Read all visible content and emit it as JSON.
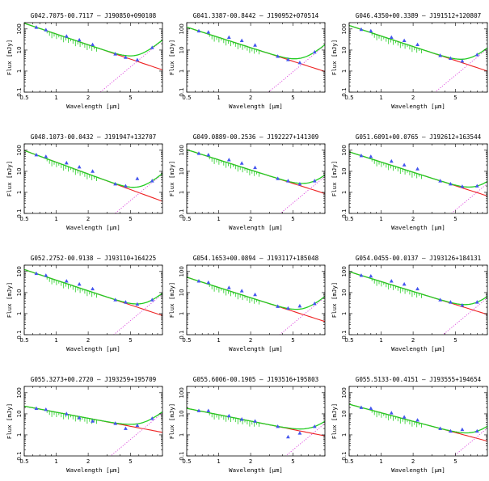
{
  "figure": {
    "xlabel": "Wavelength [μm]",
    "ylabel": "Flux [mJy]",
    "x_tick_labels": [
      "0.5",
      "1",
      "2",
      "5"
    ],
    "colors": {
      "model_total": "#22cc22",
      "photosphere": "#ee2222",
      "dust_excess": "#dd44dd",
      "observed": "#4455ee",
      "frame": "#000000"
    }
  },
  "chart_data": [
    {
      "type": "scatter",
      "title": "G042.7075-00.7117 — J190850+090108",
      "xscale": "log",
      "yscale": "log",
      "xlim": [
        0.5,
        10
      ],
      "ylim": [
        0.1,
        200
      ],
      "y_tick_labels": [
        "0.1",
        "1",
        "10",
        "100"
      ],
      "observed_points": [
        [
          0.65,
          120
        ],
        [
          0.8,
          90
        ],
        [
          1.25,
          45
        ],
        [
          1.65,
          30
        ],
        [
          2.2,
          18
        ],
        [
          3.6,
          6.5
        ],
        [
          4.5,
          4.5
        ],
        [
          5.8,
          3.4
        ],
        [
          8.0,
          13
        ]
      ]
    },
    {
      "type": "scatter",
      "title": "G041.3387-00.8442 — J190952+070514",
      "xscale": "log",
      "yscale": "log",
      "xlim": [
        0.5,
        10
      ],
      "ylim": [
        0.1,
        200
      ],
      "y_tick_labels": [
        "0.1",
        "1",
        "10",
        "100"
      ],
      "observed_points": [
        [
          0.65,
          80
        ],
        [
          0.8,
          70
        ],
        [
          1.25,
          40
        ],
        [
          1.65,
          28
        ],
        [
          2.2,
          17
        ],
        [
          3.6,
          5
        ],
        [
          4.5,
          3.5
        ],
        [
          5.8,
          2.5
        ],
        [
          8.0,
          8
        ]
      ]
    },
    {
      "type": "scatter",
      "title": "G046.4350+00.3389 — J191512+120807",
      "xscale": "log",
      "yscale": "log",
      "xlim": [
        0.5,
        10
      ],
      "ylim": [
        0.1,
        200
      ],
      "y_tick_labels": [
        "0.1",
        "1",
        "10",
        "100"
      ],
      "observed_points": [
        [
          0.65,
          95
        ],
        [
          0.8,
          80
        ],
        [
          1.25,
          40
        ],
        [
          1.65,
          28
        ],
        [
          2.2,
          18
        ],
        [
          3.6,
          5.5
        ],
        [
          4.5,
          4
        ],
        [
          5.8,
          3
        ],
        [
          8.0,
          6
        ]
      ]
    },
    {
      "type": "scatter",
      "title": "G048.1073-00.0432 — J191947+132707",
      "xscale": "log",
      "yscale": "log",
      "xlim": [
        0.5,
        10
      ],
      "ylim": [
        0.1,
        200
      ],
      "y_tick_labels": [
        "0.1",
        "1",
        "10",
        "100"
      ],
      "observed_points": [
        [
          0.65,
          60
        ],
        [
          0.8,
          50
        ],
        [
          1.25,
          25
        ],
        [
          1.65,
          16
        ],
        [
          2.2,
          10
        ],
        [
          3.6,
          2.5
        ],
        [
          4.5,
          2.0
        ],
        [
          5.8,
          4.5
        ],
        [
          8.0,
          3.5
        ]
      ]
    },
    {
      "type": "scatter",
      "title": "G049.0889-00.2536 — J192227+141309",
      "xscale": "log",
      "yscale": "log",
      "xlim": [
        0.5,
        10
      ],
      "ylim": [
        0.1,
        200
      ],
      "y_tick_labels": [
        "0.1",
        "1",
        "10",
        "100"
      ],
      "observed_points": [
        [
          0.65,
          70
        ],
        [
          0.8,
          60
        ],
        [
          1.25,
          35
        ],
        [
          1.65,
          24
        ],
        [
          2.2,
          15
        ],
        [
          3.6,
          4.5
        ],
        [
          4.5,
          3.5
        ],
        [
          5.8,
          2.5
        ],
        [
          8.0,
          3.5
        ]
      ]
    },
    {
      "type": "scatter",
      "title": "G051.6091+00.0765 — J192612+163544",
      "xscale": "log",
      "yscale": "log",
      "xlim": [
        0.5,
        10
      ],
      "ylim": [
        0.1,
        200
      ],
      "y_tick_labels": [
        "0.1",
        "1",
        "10",
        "100"
      ],
      "observed_points": [
        [
          0.65,
          55
        ],
        [
          0.8,
          50
        ],
        [
          1.25,
          30
        ],
        [
          1.65,
          20
        ],
        [
          2.2,
          13
        ],
        [
          3.6,
          3.5
        ],
        [
          4.5,
          2.5
        ],
        [
          5.8,
          1.9
        ],
        [
          8.0,
          2.0
        ]
      ]
    },
    {
      "type": "scatter",
      "title": "G052.2752-00.9138 — J193110+164225",
      "xscale": "log",
      "yscale": "log",
      "xlim": [
        0.5,
        10
      ],
      "ylim": [
        0.1,
        200
      ],
      "y_tick_labels": [
        "0.1",
        "1",
        "10",
        "100"
      ],
      "observed_points": [
        [
          0.65,
          80
        ],
        [
          0.8,
          65
        ],
        [
          1.25,
          35
        ],
        [
          1.65,
          25
        ],
        [
          2.2,
          15
        ],
        [
          3.6,
          4.5
        ],
        [
          4.5,
          3.5
        ],
        [
          5.8,
          2.8
        ],
        [
          8.0,
          4.5
        ]
      ]
    },
    {
      "type": "scatter",
      "title": "G054.1653+00.0894 — J193117+185048",
      "xscale": "log",
      "yscale": "log",
      "xlim": [
        0.5,
        10
      ],
      "ylim": [
        0.1,
        200
      ],
      "y_tick_labels": [
        "0.1",
        "1",
        "10",
        "100"
      ],
      "observed_points": [
        [
          0.65,
          35
        ],
        [
          0.8,
          30
        ],
        [
          1.25,
          17
        ],
        [
          1.65,
          12
        ],
        [
          2.2,
          8
        ],
        [
          3.6,
          2.2
        ],
        [
          4.5,
          1.8
        ],
        [
          5.8,
          2.3
        ],
        [
          8.0,
          3.0
        ]
      ]
    },
    {
      "type": "scatter",
      "title": "G054.0455-00.0137 — J193126+184131",
      "xscale": "log",
      "yscale": "log",
      "xlim": [
        0.5,
        10
      ],
      "ylim": [
        0.1,
        200
      ],
      "y_tick_labels": [
        "0.1",
        "1",
        "10",
        "100"
      ],
      "observed_points": [
        [
          0.65,
          65
        ],
        [
          0.8,
          60
        ],
        [
          1.25,
          35
        ],
        [
          1.65,
          25
        ],
        [
          2.2,
          15
        ],
        [
          3.6,
          4.5
        ],
        [
          4.5,
          3.5
        ],
        [
          5.8,
          2.5
        ],
        [
          8.0,
          3.5
        ]
      ]
    },
    {
      "type": "scatter",
      "title": "G055.3273+00.2720 — J193259+195709",
      "xscale": "log",
      "yscale": "log",
      "xlim": [
        0.5,
        10
      ],
      "ylim": [
        0.1,
        200
      ],
      "y_tick_labels": [
        "0.1",
        "1",
        "10",
        "100"
      ],
      "observed_points": [
        [
          0.65,
          18
        ],
        [
          0.8,
          16
        ],
        [
          1.25,
          10
        ],
        [
          1.65,
          6.5
        ],
        [
          2.2,
          4.5
        ],
        [
          3.6,
          3.5
        ],
        [
          4.5,
          2.0
        ],
        [
          5.8,
          2.8
        ],
        [
          8.0,
          6.0
        ]
      ]
    },
    {
      "type": "scatter",
      "title": "G055.6006-00.1905 — J193516+195803",
      "xscale": "log",
      "yscale": "log",
      "xlim": [
        0.5,
        10
      ],
      "ylim": [
        0.1,
        200
      ],
      "y_tick_labels": [
        "0.1",
        "1",
        "10",
        "100"
      ],
      "observed_points": [
        [
          0.65,
          14
        ],
        [
          0.8,
          14
        ],
        [
          1.25,
          8
        ],
        [
          1.65,
          5.5
        ],
        [
          2.2,
          4.5
        ],
        [
          3.6,
          2.5
        ],
        [
          4.5,
          0.8
        ],
        [
          5.8,
          1.2
        ],
        [
          8.0,
          2.5
        ]
      ]
    },
    {
      "type": "scatter",
      "title": "G055.5133-00.4151 — J193555+194654",
      "xscale": "log",
      "yscale": "log",
      "xlim": [
        0.5,
        10
      ],
      "ylim": [
        0.1,
        200
      ],
      "y_tick_labels": [
        "0.1",
        "1",
        "10",
        "100"
      ],
      "observed_points": [
        [
          0.65,
          20
        ],
        [
          0.8,
          18
        ],
        [
          1.25,
          11
        ],
        [
          1.65,
          7
        ],
        [
          2.2,
          5
        ],
        [
          3.6,
          2.0
        ],
        [
          4.5,
          1.5
        ],
        [
          5.8,
          1.8
        ],
        [
          8.0,
          1.5
        ]
      ]
    }
  ]
}
